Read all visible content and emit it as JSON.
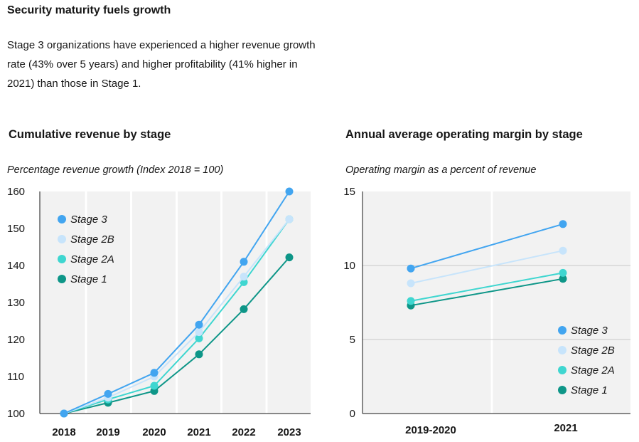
{
  "header": {
    "title": "Security maturity fuels growth",
    "description": "Stage 3 organizations have experienced a higher revenue growth rate (43% over 5 years) and higher profitability (41% higher in 2021) than those in Stage 1."
  },
  "colors": {
    "stage_3": "#42a5f0",
    "stage_2b": "#c7e4fb",
    "stage_2a": "#3fd6d0",
    "stage_1": "#0e9688",
    "plot_bg": "#f2f2f2",
    "grid": "#ffffff"
  },
  "chart_data": [
    {
      "type": "line",
      "title": "Cumulative revenue by stage",
      "subtitle": "Percentage revenue growth (Index 2018 = 100)",
      "categories": [
        "2018",
        "2019",
        "2020",
        "2021",
        "2022",
        "2023"
      ],
      "yticks": [
        100,
        110,
        120,
        130,
        140,
        150,
        160
      ],
      "ylim": [
        100,
        160
      ],
      "legend_position": "top-left",
      "grid": "vertical",
      "series": [
        {
          "name": "Stage 3",
          "color_key": "stage_3",
          "values": [
            100,
            105.3,
            111,
            124,
            141,
            160
          ]
        },
        {
          "name": "Stage 2B",
          "color_key": "stage_2b",
          "values": [
            100,
            104.3,
            110,
            122,
            137,
            152.5
          ]
        },
        {
          "name": "Stage 2A",
          "color_key": "stage_2a",
          "values": [
            100,
            103.8,
            107.5,
            120.3,
            135.5,
            152.5
          ]
        },
        {
          "name": "Stage 1",
          "color_key": "stage_1",
          "values": [
            100,
            102.9,
            106.1,
            116,
            128.2,
            142.2
          ]
        }
      ]
    },
    {
      "type": "line",
      "title": "Annual average operating margin by stage",
      "subtitle": "Operating margin as a percent of revenue",
      "categories": [
        "2019-2020",
        "2021"
      ],
      "yticks": [
        0,
        5,
        10,
        15
      ],
      "ylim": [
        0,
        15
      ],
      "legend_position": "bottom-right",
      "grid": "horizontal",
      "series": [
        {
          "name": "Stage 3",
          "color_key": "stage_3",
          "values": [
            9.8,
            12.8
          ]
        },
        {
          "name": "Stage 2B",
          "color_key": "stage_2b",
          "values": [
            8.8,
            11.0
          ]
        },
        {
          "name": "Stage 2A",
          "color_key": "stage_2a",
          "values": [
            7.6,
            9.5
          ]
        },
        {
          "name": "Stage 1",
          "color_key": "stage_1",
          "values": [
            7.3,
            9.1
          ]
        }
      ]
    }
  ]
}
